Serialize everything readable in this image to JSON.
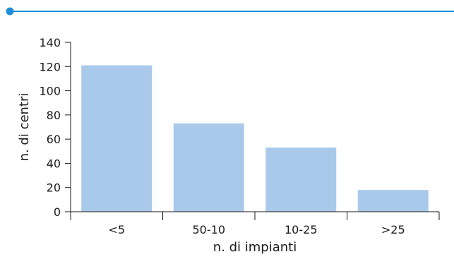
{
  "chart_data": {
    "type": "bar",
    "categories": [
      "<5",
      "50-10",
      "10-25",
      ">25"
    ],
    "values": [
      121,
      73,
      53,
      18
    ],
    "title": "",
    "xlabel": "n. di impianti",
    "ylabel": "n. di centri",
    "ylim": [
      0,
      140
    ],
    "yticks": [
      "0",
      "20",
      "40",
      "60",
      "80",
      "100",
      "120",
      "140"
    ],
    "grid": false,
    "legend": "none"
  },
  "colors": {
    "bar": "#a9c9eb",
    "accent": "#1e8fd6",
    "axis": "#1a1a1a"
  }
}
